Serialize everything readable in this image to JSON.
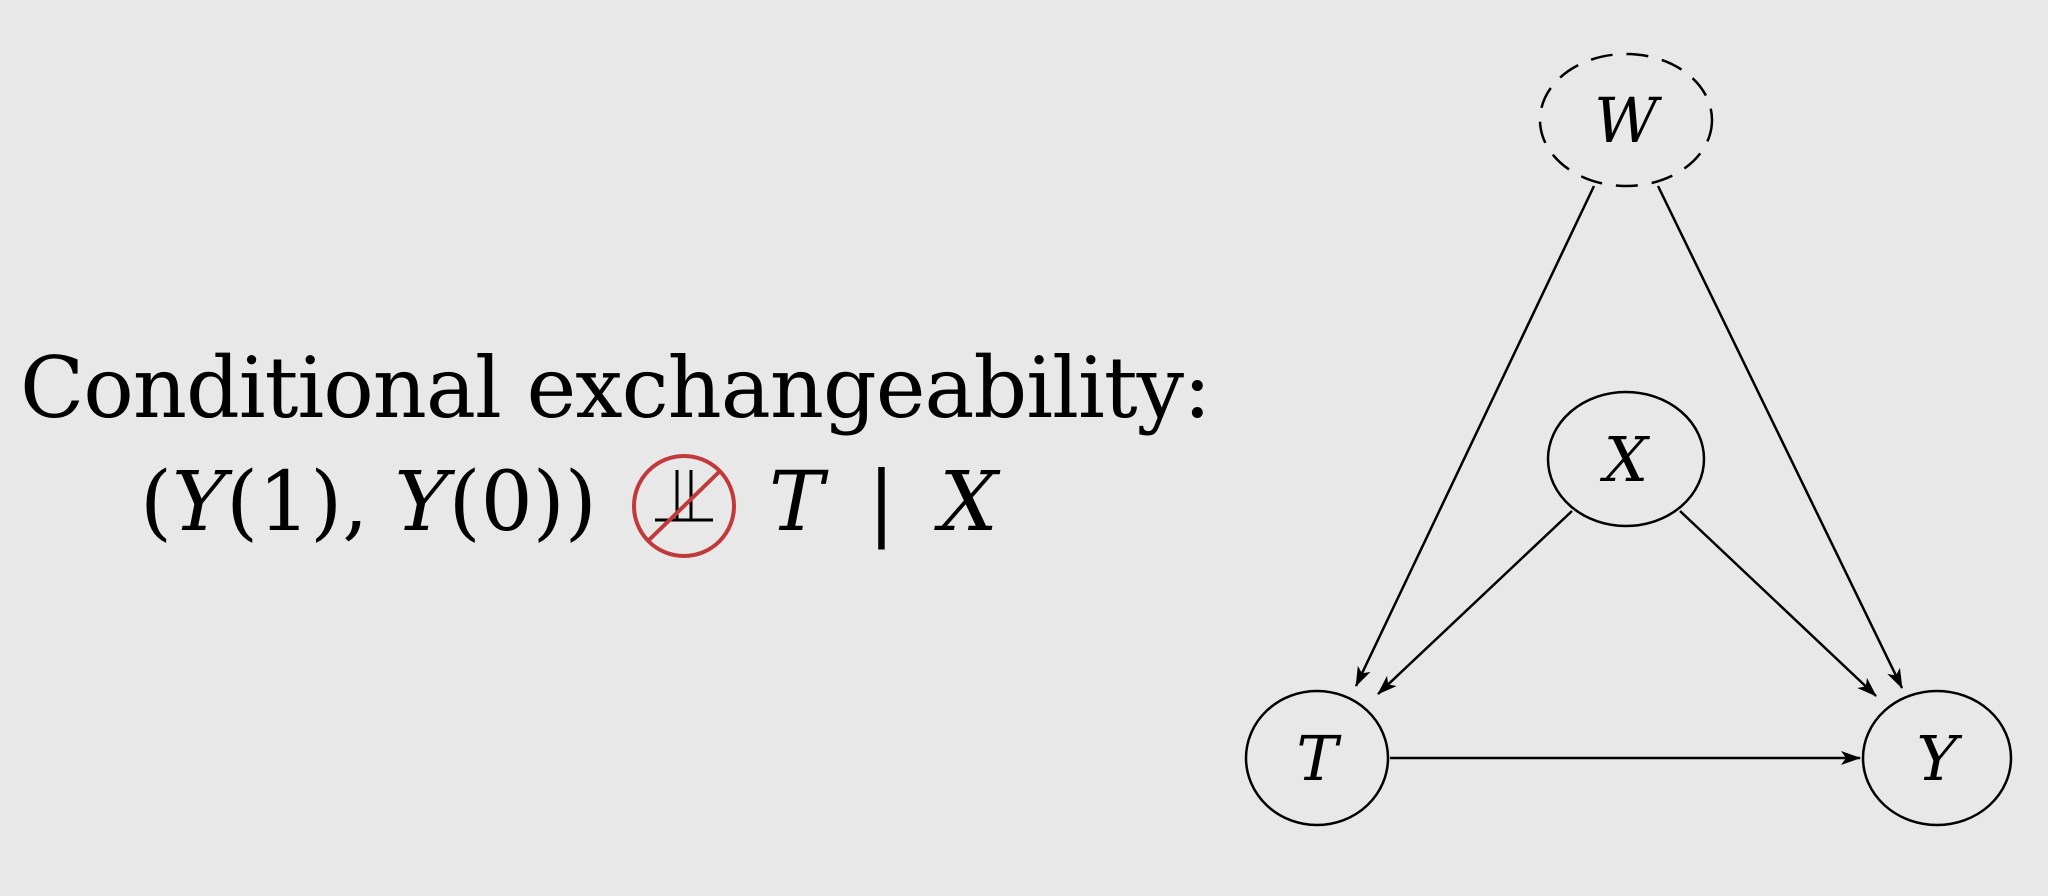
{
  "heading": "Conditional exchangeability:",
  "formula": {
    "lhs_open": "(",
    "y1": "Y",
    "arg1": "(1),",
    "y0": "Y",
    "arg0": "(0))",
    "t": "T",
    "bar": "|",
    "x": "X"
  },
  "diagram": {
    "nodes": {
      "W": {
        "label": "W",
        "latent": true
      },
      "X": {
        "label": "X",
        "latent": false
      },
      "T": {
        "label": "T",
        "latent": false
      },
      "Y": {
        "label": "Y",
        "latent": false
      }
    },
    "edges": [
      {
        "from": "W",
        "to": "T"
      },
      {
        "from": "W",
        "to": "Y"
      },
      {
        "from": "X",
        "to": "T"
      },
      {
        "from": "X",
        "to": "Y"
      },
      {
        "from": "T",
        "to": "Y"
      }
    ]
  },
  "colors": {
    "background": "#e8e8e8",
    "stroke": "#000000",
    "negation": "#c0393b"
  }
}
